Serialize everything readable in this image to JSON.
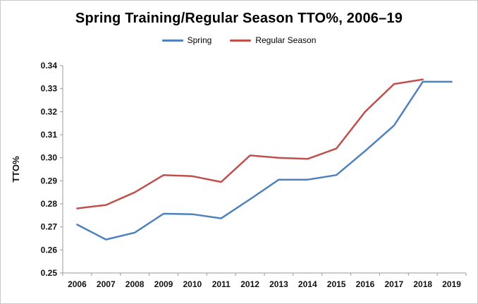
{
  "chart_data": {
    "type": "line",
    "title": "Spring Training/Regular Season TTO%, 2006–19",
    "ylabel": "TTO%",
    "xlabel": "",
    "categories": [
      "2006",
      "2007",
      "2008",
      "2009",
      "2010",
      "2011",
      "2012",
      "2013",
      "2014",
      "2015",
      "2016",
      "2017",
      "2018",
      "2019"
    ],
    "series": [
      {
        "name": "Spring",
        "color": "#4F81BD",
        "values": [
          0.271,
          0.2645,
          0.2675,
          0.2757,
          0.2755,
          0.2737,
          0.282,
          0.2905,
          0.2905,
          0.2925,
          0.303,
          0.314,
          0.333,
          0.333
        ]
      },
      {
        "name": "Regular Season",
        "color": "#C0504D",
        "values": [
          0.278,
          0.2795,
          0.285,
          0.2925,
          0.292,
          0.2895,
          0.301,
          0.3,
          0.2995,
          0.304,
          0.32,
          0.332,
          0.334,
          null
        ]
      }
    ],
    "ylim": [
      0.25,
      0.34
    ],
    "ytick_step": 0.01,
    "ytick_decimals": 2,
    "grid": false,
    "legend_position": "top",
    "axis_color": "#9a9a9a",
    "label_color": "#111111"
  }
}
